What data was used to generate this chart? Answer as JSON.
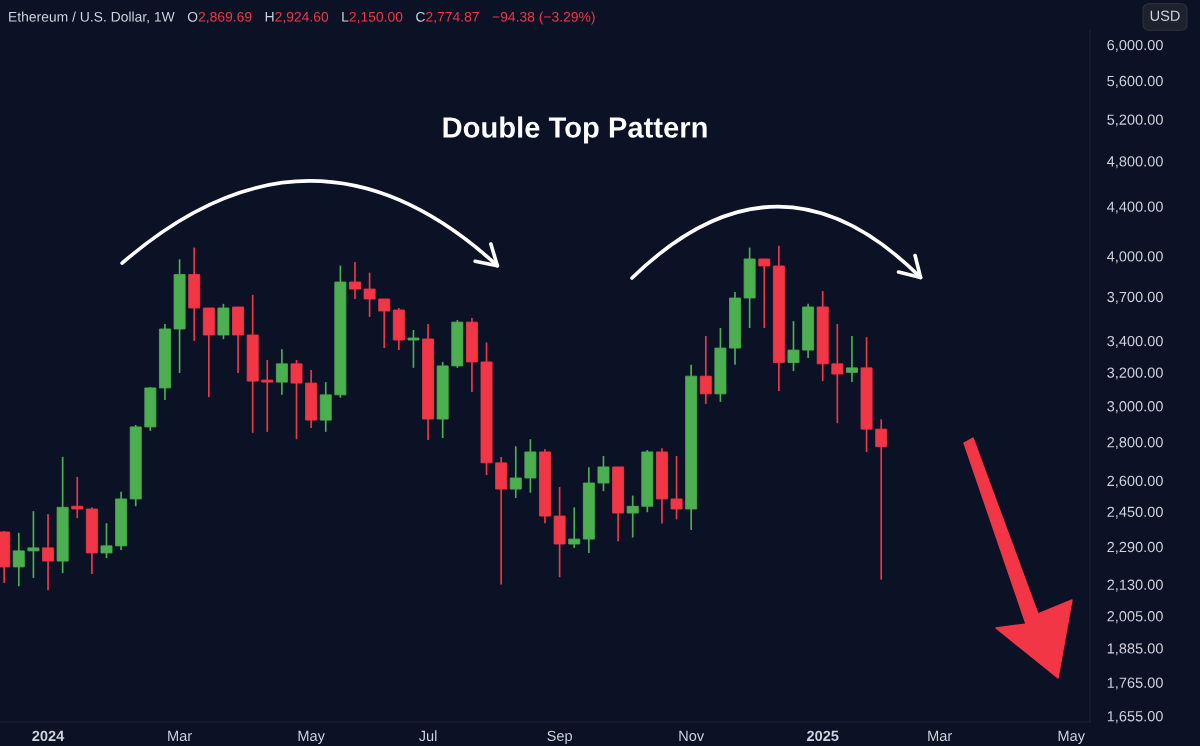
{
  "chart_data": {
    "type": "candlestick",
    "title": "Double Top Pattern",
    "subtitle": "Ethereum / U.S. Dollar, 1W",
    "ylabel": "USD",
    "annotations": [
      "O2,869.69",
      "H2,924.60",
      "L2,150.00",
      "C2,774.87",
      "−94.38 (−3.29%)"
    ],
    "x": [
      "2023-12-11",
      "2023-12-18",
      "2023-12-25",
      "2024-01-01",
      "2024-01-08",
      "2024-01-15",
      "2024-01-22",
      "2024-01-29",
      "2024-02-05",
      "2024-02-12",
      "2024-02-19",
      "2024-02-26",
      "2024-03-04",
      "2024-03-11",
      "2024-03-18",
      "2024-03-25",
      "2024-04-01",
      "2024-04-08",
      "2024-04-15",
      "2024-04-22",
      "2024-04-29",
      "2024-05-06",
      "2024-05-13",
      "2024-05-20",
      "2024-05-27",
      "2024-06-03",
      "2024-06-10",
      "2024-06-17",
      "2024-06-24",
      "2024-07-01",
      "2024-07-08",
      "2024-07-15",
      "2024-07-22",
      "2024-07-29",
      "2024-08-05",
      "2024-08-12",
      "2024-08-19",
      "2024-08-26",
      "2024-09-02",
      "2024-09-09",
      "2024-09-16",
      "2024-09-23",
      "2024-09-30",
      "2024-10-07",
      "2024-10-14",
      "2024-10-21",
      "2024-10-28",
      "2024-11-04",
      "2024-11-11",
      "2024-11-18",
      "2024-11-25",
      "2024-12-02",
      "2024-12-09",
      "2024-12-16",
      "2024-12-23",
      "2024-12-30",
      "2025-01-06",
      "2025-01-13",
      "2025-01-20",
      "2025-01-27",
      "2025-02-03"
    ],
    "ohlc": [
      [
        2356,
        2360,
        2136,
        2203
      ],
      [
        2203,
        2352,
        2123,
        2272
      ],
      [
        2272,
        2452,
        2157,
        2285
      ],
      [
        2285,
        2438,
        2107,
        2228
      ],
      [
        2228,
        2721,
        2177,
        2470
      ],
      [
        2475,
        2618,
        2419,
        2462
      ],
      [
        2462,
        2470,
        2173,
        2263
      ],
      [
        2263,
        2396,
        2241,
        2294
      ],
      [
        2294,
        2545,
        2276,
        2510
      ],
      [
        2510,
        2893,
        2475,
        2882
      ],
      [
        2882,
        3112,
        2860,
        3106
      ],
      [
        3106,
        3511,
        3035,
        3478
      ],
      [
        3478,
        3976,
        3196,
        3861
      ],
      [
        3861,
        4066,
        3399,
        3621
      ],
      [
        3621,
        3621,
        3052,
        3438
      ],
      [
        3438,
        3650,
        3411,
        3621
      ],
      [
        3628,
        3628,
        3196,
        3438
      ],
      [
        3438,
        3713,
        2849,
        3147
      ],
      [
        3153,
        3277,
        2855,
        3141
      ],
      [
        3141,
        3346,
        3065,
        3253
      ],
      [
        3253,
        3277,
        2815,
        3135
      ],
      [
        3135,
        3215,
        2876,
        2920
      ],
      [
        2920,
        3141,
        2855,
        3065
      ],
      [
        3065,
        3928,
        3048,
        3806
      ],
      [
        3806,
        3955,
        3684,
        3755
      ],
      [
        3755,
        3875,
        3559,
        3684
      ],
      [
        3684,
        3684,
        3353,
        3600
      ],
      [
        3607,
        3621,
        3340,
        3405
      ],
      [
        3405,
        3471,
        3228,
        3418
      ],
      [
        3412,
        3511,
        2810,
        2926
      ],
      [
        2926,
        3265,
        2821,
        3240
      ],
      [
        3240,
        3538,
        3228,
        3524
      ],
      [
        3524,
        3552,
        3082,
        3265
      ],
      [
        3265,
        3389,
        2628,
        2690
      ],
      [
        2690,
        2721,
        2130,
        2558
      ],
      [
        2558,
        2777,
        2515,
        2613
      ],
      [
        2613,
        2815,
        2540,
        2747
      ],
      [
        2747,
        2762,
        2396,
        2429
      ],
      [
        2429,
        2568,
        2160,
        2302
      ],
      [
        2302,
        2470,
        2285,
        2324
      ],
      [
        2324,
        2668,
        2263,
        2588
      ],
      [
        2588,
        2726,
        2548,
        2669
      ],
      [
        2669,
        2669,
        2314,
        2443
      ],
      [
        2443,
        2526,
        2331,
        2475
      ],
      [
        2475,
        2757,
        2447,
        2747
      ],
      [
        2747,
        2767,
        2394,
        2510
      ],
      [
        2510,
        2726,
        2414,
        2462
      ],
      [
        2462,
        3247,
        2365,
        3177
      ],
      [
        3177,
        3431,
        3012,
        3071
      ],
      [
        3071,
        3485,
        3024,
        3353
      ],
      [
        3353,
        3734,
        3247,
        3691
      ],
      [
        3691,
        4066,
        3485,
        3978
      ],
      [
        3978,
        3978,
        3485,
        3925
      ],
      [
        3925,
        4081,
        3088,
        3261
      ],
      [
        3261,
        3531,
        3208,
        3340
      ],
      [
        3340,
        3650,
        3290,
        3628
      ],
      [
        3628,
        3741,
        3147,
        3253
      ],
      [
        3253,
        3511,
        2903,
        3190
      ],
      [
        3200,
        3431,
        3141,
        3228
      ],
      [
        3228,
        3424,
        2747,
        2869.69
      ],
      [
        2869.69,
        2924.6,
        2150.0,
        2774.87
      ]
    ],
    "colors": [
      "#f23645",
      "#4caf50",
      "#4caf50",
      "#f23645",
      "#4caf50",
      "#f23645",
      "#f23645",
      "#4caf50",
      "#4caf50",
      "#4caf50",
      "#4caf50",
      "#4caf50",
      "#4caf50",
      "#f23645",
      "#f23645",
      "#4caf50",
      "#f23645",
      "#f23645",
      "#f23645",
      "#4caf50",
      "#f23645",
      "#f23645",
      "#4caf50",
      "#4caf50",
      "#f23645",
      "#f23645",
      "#f23645",
      "#f23645",
      "#4caf50",
      "#f23645",
      "#4caf50",
      "#4caf50",
      "#f23645",
      "#f23645",
      "#f23645",
      "#4caf50",
      "#4caf50",
      "#f23645",
      "#f23645",
      "#4caf50",
      "#4caf50",
      "#4caf50",
      "#f23645",
      "#4caf50",
      "#4caf50",
      "#f23645",
      "#f23645",
      "#4caf50",
      "#f23645",
      "#4caf50",
      "#4caf50",
      "#4caf50",
      "#f23645",
      "#f23645",
      "#4caf50",
      "#4caf50",
      "#f23645",
      "#f23645",
      "#4caf50",
      "#f23645",
      "#f23645"
    ],
    "log": true,
    "xlim": [
      "2023-12-09",
      "2025-05-14"
    ],
    "xticks": [
      {
        "value": "2024-01-01",
        "label": "2024"
      },
      {
        "value": "2024-03-04",
        "label": "Mar"
      },
      {
        "value": "2024-05-06",
        "label": "May"
      },
      {
        "value": "2024-07-01",
        "label": "Jul"
      },
      {
        "value": "2024-09-02",
        "label": "Sep"
      },
      {
        "value": "2024-11-04",
        "label": "Nov"
      },
      {
        "value": "2025-01-06",
        "label": "2025"
      },
      {
        "value": "2025-03-03",
        "label": "Mar"
      },
      {
        "value": "2025-05-05",
        "label": "May"
      }
    ],
    "ylim": [
      1636,
      6173
    ],
    "yticks": [
      {
        "value": 6000,
        "label": "6,000.00"
      },
      {
        "value": 5600,
        "label": "5,600.00"
      },
      {
        "value": 5200,
        "label": "5,200.00"
      },
      {
        "value": 4800,
        "label": "4,800.00"
      },
      {
        "value": 4400,
        "label": "4,400.00"
      },
      {
        "value": 4000,
        "label": "4,000.00"
      },
      {
        "value": 3700,
        "label": "3,700.00"
      },
      {
        "value": 3400,
        "label": "3,400.00"
      },
      {
        "value": 3200,
        "label": "3,200.00"
      },
      {
        "value": 3000,
        "label": "3,000.00"
      },
      {
        "value": 2800,
        "label": "2,800.00"
      },
      {
        "value": 2600,
        "label": "2,600.00"
      },
      {
        "value": 2450,
        "label": "2,450.00"
      },
      {
        "value": 2290,
        "label": "2,290.00"
      },
      {
        "value": 2130,
        "label": "2,130.00"
      },
      {
        "value": 2005,
        "label": "2,005.00"
      },
      {
        "value": 1885,
        "label": "1,885.00"
      },
      {
        "value": 1765,
        "label": "1,765.00"
      },
      {
        "value": 1655,
        "label": "1,655.00"
      }
    ],
    "grid": false
  }
}
